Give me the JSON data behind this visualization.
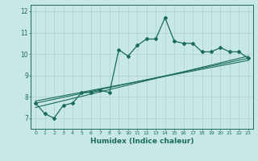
{
  "xlabel": "Humidex (Indice chaleur)",
  "ylabel": "",
  "background_color": "#c8e8e8",
  "grid_color": "#b0d4d4",
  "line_color": "#1a6b5a",
  "xlim": [
    -0.5,
    23.5
  ],
  "ylim": [
    6.5,
    12.3
  ],
  "yticks": [
    7,
    8,
    9,
    10,
    11,
    12
  ],
  "xticks": [
    0,
    1,
    2,
    3,
    4,
    5,
    6,
    7,
    8,
    9,
    10,
    11,
    12,
    13,
    14,
    15,
    16,
    17,
    18,
    19,
    20,
    21,
    22,
    23
  ],
  "series1_x": [
    0,
    1,
    2,
    3,
    4,
    5,
    6,
    7,
    8,
    9,
    10,
    11,
    12,
    13,
    14,
    15,
    16,
    17,
    18,
    19,
    20,
    21,
    22,
    23
  ],
  "series1_y": [
    7.7,
    7.2,
    7.0,
    7.6,
    7.7,
    8.2,
    8.2,
    8.3,
    8.2,
    10.2,
    9.9,
    10.4,
    10.7,
    10.7,
    11.7,
    10.6,
    10.5,
    10.5,
    10.1,
    10.1,
    10.3,
    10.1,
    10.1,
    9.8
  ],
  "series2_x": [
    0,
    23
  ],
  "series2_y": [
    7.7,
    9.8
  ],
  "series3_x": [
    0,
    23
  ],
  "series3_y": [
    7.5,
    9.9
  ],
  "series4_x": [
    0,
    23
  ],
  "series4_y": [
    7.8,
    9.7
  ]
}
